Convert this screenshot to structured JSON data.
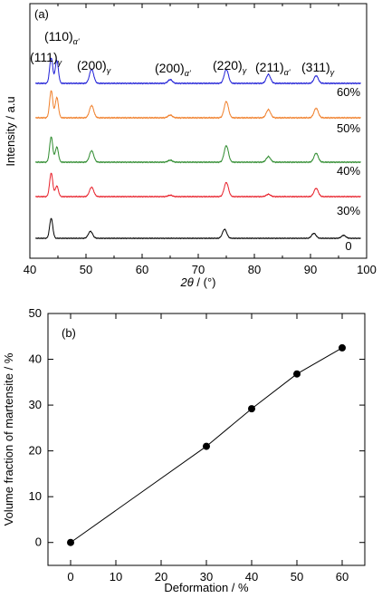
{
  "chart_data": [
    {
      "type": "line",
      "panel_label": "(a)",
      "xlabel_math": "2θ",
      "xlabel_unit": " / (°)",
      "ylabel": "Intensity / a.u",
      "xlim": [
        40,
        100
      ],
      "x_ticks": [
        40,
        50,
        60,
        70,
        80,
        90,
        100
      ],
      "y_ticks_shown": false,
      "series": [
        {
          "name": "0",
          "color": "#000000",
          "peaks": [
            {
              "x": 43.8,
              "h": 1.0
            },
            {
              "x": 50.8,
              "h": 0.35
            },
            {
              "x": 74.7,
              "h": 0.45
            },
            {
              "x": 90.6,
              "h": 0.25
            },
            {
              "x": 95.9,
              "h": 0.15
            }
          ]
        },
        {
          "name": "30%",
          "color": "#e8202a",
          "peaks": [
            {
              "x": 43.8,
              "h": 1.0
            },
            {
              "x": 44.8,
              "h": 0.45
            },
            {
              "x": 51.0,
              "h": 0.4
            },
            {
              "x": 65.0,
              "h": 0.06
            },
            {
              "x": 75.0,
              "h": 0.6
            },
            {
              "x": 82.5,
              "h": 0.1
            },
            {
              "x": 91.0,
              "h": 0.35
            }
          ]
        },
        {
          "name": "40%",
          "color": "#2e8b2e",
          "peaks": [
            {
              "x": 43.8,
              "h": 1.0
            },
            {
              "x": 44.8,
              "h": 0.6
            },
            {
              "x": 51.0,
              "h": 0.45
            },
            {
              "x": 65.0,
              "h": 0.08
            },
            {
              "x": 75.0,
              "h": 0.65
            },
            {
              "x": 82.5,
              "h": 0.22
            },
            {
              "x": 91.0,
              "h": 0.35
            }
          ]
        },
        {
          "name": "50%",
          "color": "#f07f2a",
          "peaks": [
            {
              "x": 43.8,
              "h": 1.0
            },
            {
              "x": 44.8,
              "h": 0.75
            },
            {
              "x": 51.0,
              "h": 0.45
            },
            {
              "x": 65.0,
              "h": 0.1
            },
            {
              "x": 75.0,
              "h": 0.6
            },
            {
              "x": 82.5,
              "h": 0.3
            },
            {
              "x": 91.0,
              "h": 0.35
            }
          ]
        },
        {
          "name": "60%",
          "color": "#1f1fd6",
          "peaks": [
            {
              "x": 43.8,
              "h": 1.0
            },
            {
              "x": 44.8,
              "h": 0.9
            },
            {
              "x": 51.0,
              "h": 0.55
            },
            {
              "x": 65.0,
              "h": 0.15
            },
            {
              "x": 75.0,
              "h": 0.55
            },
            {
              "x": 82.5,
              "h": 0.35
            },
            {
              "x": 91.0,
              "h": 0.3
            }
          ]
        }
      ],
      "annotations": [
        {
          "main": "(111)",
          "sub": "γ"
        },
        {
          "main": "(110)",
          "sub": "α'"
        },
        {
          "main": "(200)",
          "sub": "γ"
        },
        {
          "main": "(200)",
          "sub": "α'"
        },
        {
          "main": "(220)",
          "sub": "γ"
        },
        {
          "main": "(211)",
          "sub": "α'"
        },
        {
          "main": "(311)",
          "sub": "γ"
        }
      ]
    },
    {
      "type": "line",
      "panel_label": "(b)",
      "xlabel": "Deformation / %",
      "ylabel": "Volume fraction of martensite / %",
      "xlim": [
        -5,
        65
      ],
      "ylim": [
        -5,
        50
      ],
      "x_ticks": [
        0,
        10,
        20,
        30,
        40,
        50,
        60
      ],
      "y_ticks": [
        0,
        10,
        20,
        30,
        40,
        50
      ],
      "marker": "filled-circle",
      "x": [
        0,
        30,
        40,
        50,
        60
      ],
      "y": [
        0,
        21,
        29.2,
        36.8,
        42.5
      ]
    }
  ]
}
